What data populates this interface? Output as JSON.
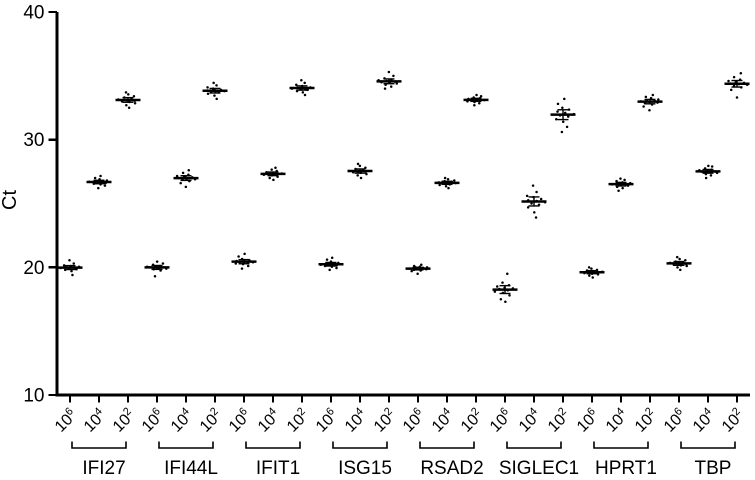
{
  "chart_data": {
    "type": "scatter",
    "plot_style": "column-scatter-with-mean-and-error-bars",
    "title": "",
    "xlabel": "",
    "ylabel": "Ct",
    "ylim": [
      10,
      40
    ],
    "yticks": [
      40,
      30,
      20,
      10
    ],
    "grid": false,
    "legend": "none",
    "marker_color": "#000000",
    "axis_color": "#000000",
    "background_color": "#ffffff",
    "x_dilution_base": "10",
    "dilution_exponents": [
      "6",
      "4",
      "2"
    ],
    "groups": [
      {
        "gene": "IFI27",
        "dilutions": [
          {
            "exponent": "6",
            "mean": 20.0,
            "points": [
              19.4,
              19.7,
              19.8,
              19.85,
              19.9,
              19.95,
              20.0,
              20.0,
              20.05,
              20.1,
              20.15,
              20.3,
              20.55
            ]
          },
          {
            "exponent": "4",
            "mean": 26.7,
            "points": [
              26.2,
              26.4,
              26.5,
              26.55,
              26.6,
              26.65,
              26.7,
              26.7,
              26.75,
              26.8,
              26.9,
              27.0,
              27.15
            ]
          },
          {
            "exponent": "2",
            "mean": 33.1,
            "points": [
              32.5,
              32.7,
              32.85,
              32.95,
              33.0,
              33.05,
              33.1,
              33.15,
              33.2,
              33.3,
              33.4,
              33.55,
              33.7
            ]
          }
        ]
      },
      {
        "gene": "IFI44L",
        "dilutions": [
          {
            "exponent": "6",
            "mean": 20.0,
            "points": [
              19.3,
              19.75,
              19.85,
              19.9,
              19.95,
              20.0,
              20.0,
              20.05,
              20.05,
              20.1,
              20.2,
              20.3,
              20.45
            ]
          },
          {
            "exponent": "4",
            "mean": 27.0,
            "points": [
              26.3,
              26.6,
              26.75,
              26.85,
              26.9,
              26.95,
              27.0,
              27.05,
              27.1,
              27.15,
              27.25,
              27.4,
              27.6
            ]
          },
          {
            "exponent": "2",
            "mean": 33.8,
            "points": [
              33.2,
              33.45,
              33.6,
              33.7,
              33.75,
              33.8,
              33.8,
              33.85,
              33.9,
              34.0,
              34.1,
              34.25,
              34.45
            ]
          }
        ]
      },
      {
        "gene": "IFIT1",
        "dilutions": [
          {
            "exponent": "6",
            "mean": 20.4,
            "points": [
              19.9,
              20.1,
              20.25,
              20.3,
              20.35,
              20.4,
              20.4,
              20.45,
              20.5,
              20.55,
              20.65,
              20.85,
              21.05
            ]
          },
          {
            "exponent": "4",
            "mean": 27.3,
            "points": [
              26.85,
              27.0,
              27.1,
              27.2,
              27.25,
              27.3,
              27.3,
              27.35,
              27.4,
              27.45,
              27.55,
              27.65,
              27.8
            ]
          },
          {
            "exponent": "2",
            "mean": 34.0,
            "points": [
              33.5,
              33.7,
              33.8,
              33.9,
              33.95,
              34.0,
              34.0,
              34.05,
              34.1,
              34.2,
              34.3,
              34.45,
              34.65
            ]
          }
        ]
      },
      {
        "gene": "ISG15",
        "dilutions": [
          {
            "exponent": "6",
            "mean": 20.2,
            "points": [
              19.8,
              19.95,
              20.05,
              20.1,
              20.15,
              20.2,
              20.2,
              20.25,
              20.3,
              20.35,
              20.45,
              20.6,
              20.75
            ]
          },
          {
            "exponent": "4",
            "mean": 27.5,
            "points": [
              27.0,
              27.2,
              27.3,
              27.4,
              27.45,
              27.5,
              27.5,
              27.55,
              27.6,
              27.7,
              27.8,
              27.95,
              28.1
            ]
          },
          {
            "exponent": "2",
            "mean": 34.55,
            "points": [
              34.0,
              34.15,
              34.3,
              34.4,
              34.45,
              34.5,
              34.55,
              34.6,
              34.65,
              34.7,
              34.8,
              35.0,
              35.3
            ]
          }
        ]
      },
      {
        "gene": "RSAD2",
        "dilutions": [
          {
            "exponent": "6",
            "mean": 19.9,
            "points": [
              19.5,
              19.7,
              19.75,
              19.8,
              19.85,
              19.9,
              19.9,
              19.95,
              20.0,
              20.0,
              20.05,
              20.1,
              20.2
            ]
          },
          {
            "exponent": "4",
            "mean": 26.6,
            "points": [
              26.2,
              26.35,
              26.45,
              26.5,
              26.55,
              26.6,
              26.6,
              26.65,
              26.7,
              26.75,
              26.8,
              26.9,
              27.0
            ]
          },
          {
            "exponent": "2",
            "mean": 33.1,
            "points": [
              32.7,
              32.85,
              32.95,
              33.0,
              33.05,
              33.1,
              33.1,
              33.15,
              33.2,
              33.25,
              33.3,
              33.4,
              33.5
            ]
          }
        ]
      },
      {
        "gene": "SIGLEC1",
        "dilutions": [
          {
            "exponent": "6",
            "mean": 18.3,
            "points": [
              17.3,
              17.5,
              17.8,
              18.0,
              18.1,
              18.2,
              18.3,
              18.35,
              18.4,
              18.5,
              18.6,
              18.8,
              19.5
            ]
          },
          {
            "exponent": "4",
            "mean": 25.2,
            "points": [
              23.9,
              24.3,
              24.7,
              24.9,
              25.0,
              25.1,
              25.2,
              25.25,
              25.35,
              25.5,
              25.6,
              25.9,
              26.4
            ]
          },
          {
            "exponent": "2",
            "mean": 32.0,
            "points": [
              30.6,
              31.0,
              31.4,
              31.6,
              31.8,
              31.9,
              32.0,
              32.1,
              32.2,
              32.35,
              32.5,
              32.8,
              33.2
            ]
          }
        ]
      },
      {
        "gene": "HPRT1",
        "dilutions": [
          {
            "exponent": "6",
            "mean": 19.6,
            "points": [
              19.2,
              19.35,
              19.45,
              19.5,
              19.55,
              19.6,
              19.6,
              19.65,
              19.7,
              19.75,
              19.8,
              19.9,
              20.0
            ]
          },
          {
            "exponent": "4",
            "mean": 26.5,
            "points": [
              26.0,
              26.2,
              26.3,
              26.4,
              26.45,
              26.5,
              26.5,
              26.55,
              26.6,
              26.65,
              26.75,
              26.85,
              26.95
            ]
          },
          {
            "exponent": "2",
            "mean": 33.0,
            "points": [
              32.3,
              32.6,
              32.75,
              32.85,
              32.9,
              32.95,
              33.0,
              33.05,
              33.1,
              33.15,
              33.25,
              33.35,
              33.5
            ]
          }
        ]
      },
      {
        "gene": "TBP",
        "dilutions": [
          {
            "exponent": "6",
            "mean": 20.3,
            "points": [
              19.8,
              20.0,
              20.1,
              20.15,
              20.2,
              20.25,
              20.3,
              20.35,
              20.4,
              20.45,
              20.55,
              20.65,
              20.8
            ]
          },
          {
            "exponent": "4",
            "mean": 27.5,
            "points": [
              27.0,
              27.2,
              27.3,
              27.4,
              27.45,
              27.5,
              27.5,
              27.55,
              27.6,
              27.65,
              27.75,
              27.9,
              27.95
            ]
          },
          {
            "exponent": "2",
            "mean": 34.4,
            "points": [
              33.3,
              33.9,
              34.1,
              34.2,
              34.3,
              34.35,
              34.4,
              34.45,
              34.5,
              34.6,
              34.7,
              34.9,
              35.2
            ]
          }
        ]
      }
    ]
  }
}
